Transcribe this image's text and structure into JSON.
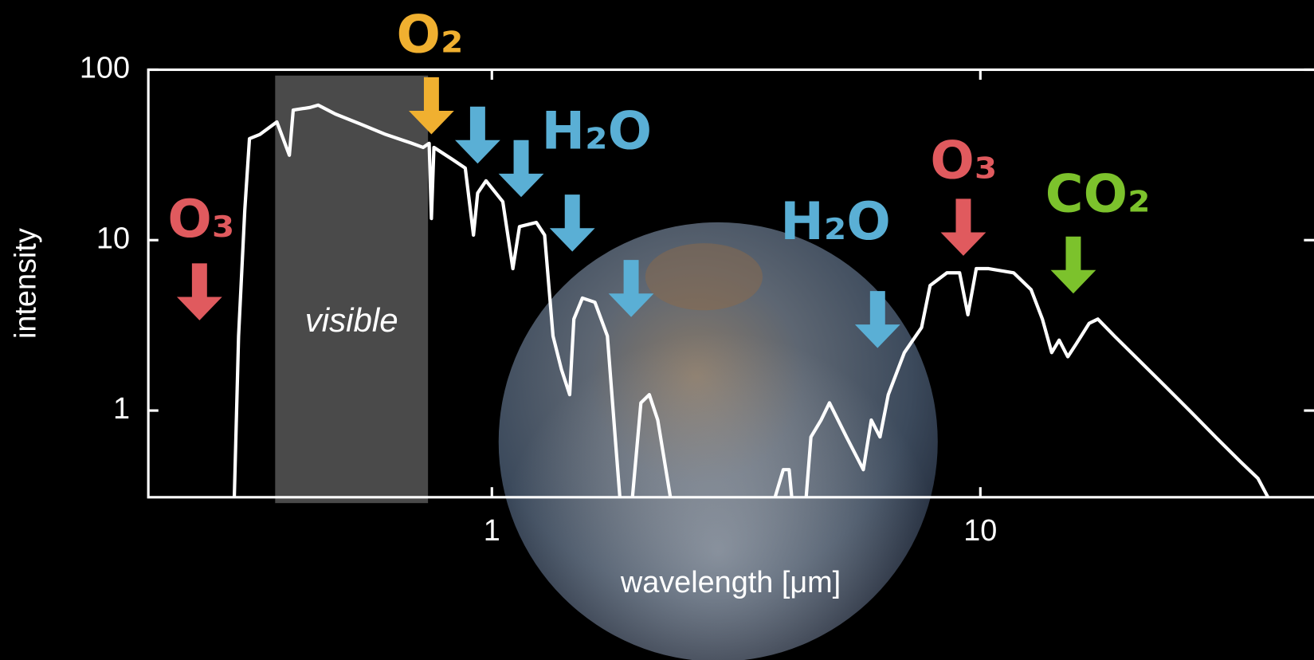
{
  "chart_data": {
    "type": "line",
    "x_label": "wavelength [μm]",
    "y_label": "intensity",
    "x_log": true,
    "y_log": true,
    "xlim": [
      0.198,
      48.2
    ],
    "ylim": [
      0.31,
      100
    ],
    "xticks": [
      1,
      10
    ],
    "yticks": [
      1,
      10,
      100
    ],
    "color": "#ffffff",
    "visible_band": {
      "label": "visible",
      "range": [
        0.36,
        0.74
      ],
      "color": "#4a4a4a"
    },
    "x": [
      0.297,
      0.303,
      0.312,
      0.319,
      0.335,
      0.363,
      0.385,
      0.392,
      0.424,
      0.441,
      0.478,
      0.538,
      0.606,
      0.682,
      0.723,
      0.744,
      0.752,
      0.761,
      0.831,
      0.882,
      0.917,
      0.935,
      0.973,
      1.053,
      1.104,
      1.139,
      1.233,
      1.282,
      1.334,
      1.388,
      1.443,
      1.472,
      1.532,
      1.625,
      1.724,
      1.793,
      1.828,
      null,
      1.94,
      2.019,
      2.1,
      2.186,
      2.32,
      null,
      3.8,
      3.95,
      4.06,
      4.11,
      null,
      4.4,
      4.5,
      4.72,
      4.91,
      5.32,
      5.76,
      5.98,
      6.23,
      6.48,
      6.99,
      7.58,
      7.89,
      8.54,
      9.07,
      9.43,
      9.81,
      10.4,
      11.7,
      12.7,
      13.4,
      14.0,
      14.5,
      15.1,
      15.7,
      16.7,
      17.4,
      18.8,
      21.2,
      23.9,
      26.9,
      30.3,
      34.1,
      37.0,
      38.8
    ],
    "values": [
      0.31,
      2.74,
      15.0,
      39.4,
      41.7,
      49.4,
      31.5,
      58,
      60,
      62,
      55,
      48,
      41.7,
      37.2,
      35,
      37,
      13.4,
      35,
      29.7,
      26.5,
      10.7,
      18.9,
      22.3,
      16.8,
      6.8,
      12.0,
      12.7,
      10.7,
      2.74,
      1.74,
      1.24,
      3.44,
      4.57,
      4.32,
      2.74,
      0.63,
      0.31,
      null,
      0.31,
      1.11,
      1.24,
      0.88,
      0.31,
      null,
      0.31,
      0.45,
      0.45,
      0.31,
      null,
      0.31,
      0.7,
      0.88,
      1.11,
      0.7,
      0.45,
      0.88,
      0.7,
      1.24,
      2.19,
      3.07,
      5.42,
      6.43,
      6.43,
      3.65,
      6.8,
      6.8,
      6.43,
      5.12,
      3.44,
      2.19,
      2.59,
      2.07,
      2.45,
      3.25,
      3.44,
      2.74,
      1.95,
      1.39,
      0.99,
      0.7,
      0.5,
      0.4,
      0.31
    ],
    "annotations": [
      {
        "label": "O₃",
        "color": "#e05a5e",
        "arrows": [
          0.252
        ]
      },
      {
        "label": "O₂",
        "color": "#f0b030",
        "arrows": [
          0.752
        ]
      },
      {
        "label": "H₂O",
        "color": "#5aafd5",
        "arrows": [
          0.935,
          1.148,
          1.461,
          1.928
        ]
      },
      {
        "label": "H₂O",
        "color": "#5aafd5",
        "arrows": [
          6.16
        ]
      },
      {
        "label": "O₃",
        "color": "#e05a5e",
        "arrows": [
          9.23
        ]
      },
      {
        "label": "CO₂",
        "color": "#7cc22c",
        "arrows": [
          15.5
        ]
      }
    ]
  }
}
